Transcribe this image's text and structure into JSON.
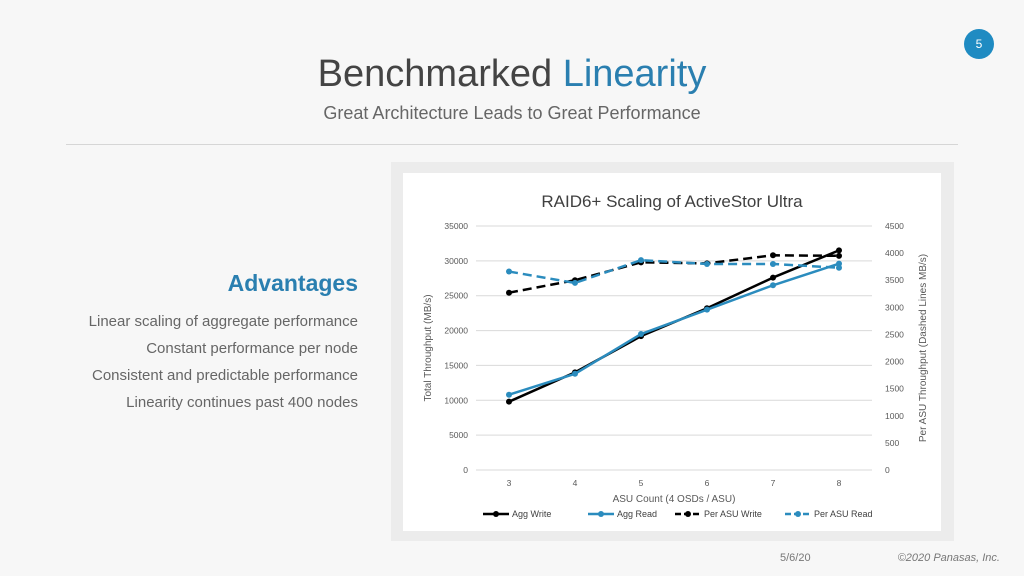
{
  "slide_number": "5",
  "title_main": "Benchmarked ",
  "title_accent": "Linearity",
  "subtitle": "Great Architecture Leads to Great Performance",
  "advantages": {
    "heading": "Advantages",
    "items": [
      "Linear scaling of aggregate performance",
      "Constant performance per node",
      "Consistent and predictable performance",
      "Linearity continues past 400 nodes"
    ]
  },
  "footer": {
    "date": "5/6/20",
    "copyright": "©2020 Panasas, Inc."
  },
  "colors": {
    "accent": "#2a7fb0",
    "black_series": "#000000",
    "blue_series": "#2b8cbe"
  },
  "chart_data": {
    "type": "line",
    "title": "RAID6+ Scaling of ActiveStor Ultra",
    "xlabel": "ASU Count (4 OSDs / ASU)",
    "ylabel": "Total Throughput (MB/s)",
    "y2label": "Per ASU Throughput (Dashed Lines MB/s)",
    "categories": [
      "3",
      "4",
      "5",
      "6",
      "7",
      "8"
    ],
    "ylim": [
      0,
      35000
    ],
    "yticks": [
      "0",
      "5000",
      "10000",
      "15000",
      "20000",
      "25000",
      "30000",
      "35000"
    ],
    "y2lim": [
      0,
      4500
    ],
    "y2ticks": [
      "0",
      "500",
      "1000",
      "1500",
      "2000",
      "2500",
      "3000",
      "3500",
      "4000",
      "4500"
    ],
    "grid": true,
    "legend_position": "bottom",
    "series": [
      {
        "name": "Agg Write",
        "axis": "left",
        "style": "solid",
        "color": "#000000",
        "values": [
          9800,
          14000,
          19200,
          23200,
          27600,
          31500
        ]
      },
      {
        "name": "Agg Read",
        "axis": "left",
        "style": "solid",
        "color": "#2b8cbe",
        "values": [
          10800,
          13800,
          19500,
          23000,
          26500,
          29600
        ]
      },
      {
        "name": "Per ASU Write",
        "axis": "right",
        "style": "dashed",
        "color": "#000000",
        "values": [
          3270,
          3500,
          3830,
          3810,
          3960,
          3950
        ]
      },
      {
        "name": "Per ASU Read",
        "axis": "right",
        "style": "dashed",
        "color": "#2b8cbe",
        "values": [
          3660,
          3450,
          3870,
          3800,
          3800,
          3730
        ]
      }
    ]
  }
}
